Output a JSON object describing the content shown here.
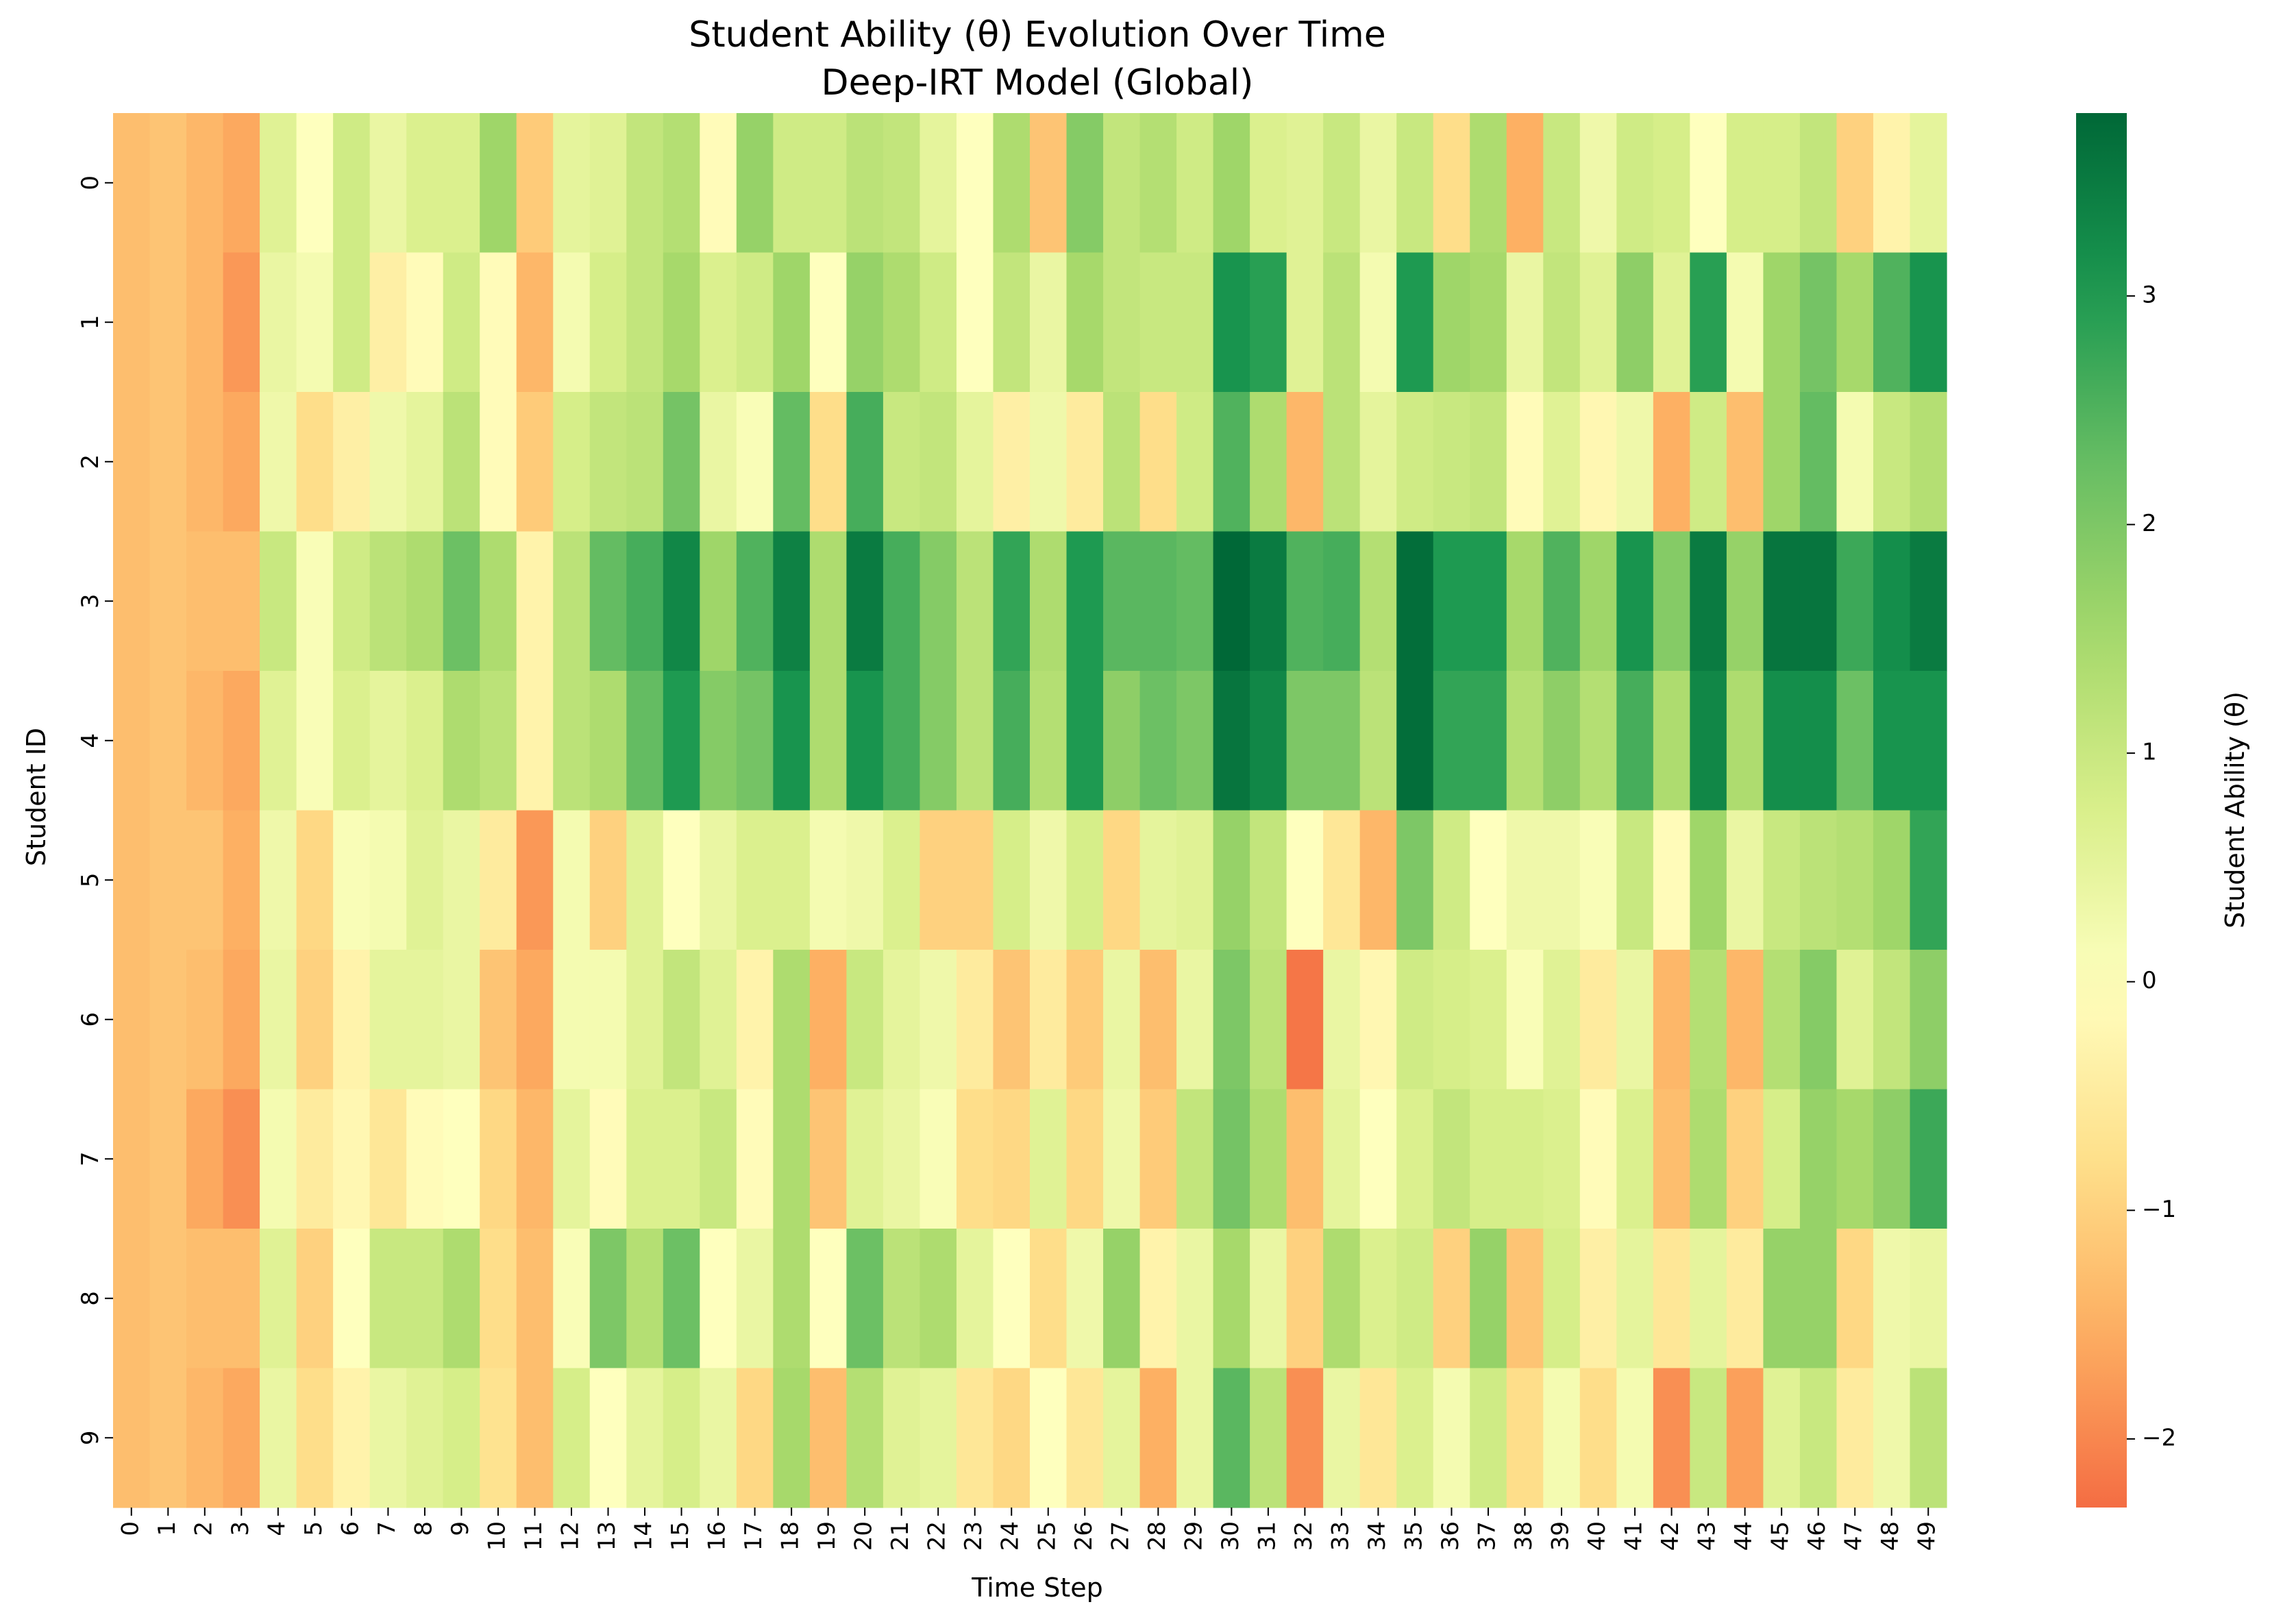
{
  "chart_data": {
    "type": "heatmap",
    "title": "Student Ability (θ) Evolution Over Time",
    "subtitle": "Deep-IRT Model (Global)",
    "xlabel": "Time Step",
    "ylabel": "Student ID",
    "colorbar_label": "Student Ability (θ)",
    "colormap": "RdYlGn",
    "vmin": -2.3,
    "vmax": 3.8,
    "colorbar_ticks": [
      -2,
      -1,
      0,
      1,
      2,
      3
    ],
    "x": [
      0,
      1,
      2,
      3,
      4,
      5,
      6,
      7,
      8,
      9,
      10,
      11,
      12,
      13,
      14,
      15,
      16,
      17,
      18,
      19,
      20,
      21,
      22,
      23,
      24,
      25,
      26,
      27,
      28,
      29,
      30,
      31,
      32,
      33,
      34,
      35,
      36,
      37,
      38,
      39,
      40,
      41,
      42,
      43,
      44,
      45,
      46,
      47,
      48,
      49
    ],
    "y": [
      0,
      1,
      2,
      3,
      4,
      5,
      6,
      7,
      8,
      9
    ],
    "values": [
      [
        -1.3,
        -1.2,
        -1.4,
        -1.6,
        0.6,
        0.0,
        0.9,
        0.4,
        0.7,
        0.7,
        1.6,
        -1.1,
        0.5,
        0.6,
        1.1,
        1.3,
        -0.1,
        1.7,
        0.9,
        0.9,
        1.2,
        1.1,
        0.5,
        0.0,
        1.4,
        -1.2,
        1.9,
        1.1,
        1.3,
        0.9,
        1.6,
        0.7,
        0.6,
        1.0,
        0.4,
        1.0,
        -0.8,
        1.4,
        -1.5,
        1.0,
        0.3,
        0.9,
        0.8,
        0.0,
        0.8,
        0.8,
        1.1,
        -1.0,
        -0.3,
        0.5
      ],
      [
        -1.3,
        -1.2,
        -1.4,
        -1.8,
        0.4,
        0.2,
        0.9,
        -0.4,
        -0.1,
        0.9,
        -0.1,
        -1.4,
        0.2,
        0.8,
        1.1,
        1.5,
        0.7,
        0.9,
        1.6,
        0.0,
        1.7,
        1.4,
        0.9,
        0.0,
        1.1,
        0.4,
        1.5,
        1.1,
        1.0,
        1.0,
        3.1,
        2.9,
        0.6,
        1.2,
        0.2,
        3.0,
        1.6,
        1.5,
        0.4,
        1.1,
        0.6,
        1.8,
        0.6,
        2.9,
        0.2,
        1.6,
        2.1,
        1.5,
        2.5,
        3.1
      ],
      [
        -1.3,
        -1.2,
        -1.4,
        -1.6,
        0.3,
        -0.8,
        -0.4,
        0.3,
        0.5,
        1.2,
        -0.1,
        -1.1,
        0.8,
        1.1,
        1.2,
        2.1,
        0.4,
        0.1,
        2.3,
        -0.8,
        2.6,
        1.0,
        1.1,
        0.5,
        -0.4,
        0.3,
        -0.5,
        1.2,
        -0.8,
        0.9,
        2.5,
        1.4,
        -1.4,
        1.2,
        0.5,
        0.9,
        1.0,
        1.1,
        -0.1,
        0.6,
        -0.2,
        0.3,
        -1.5,
        0.9,
        -1.3,
        1.6,
        2.3,
        0.2,
        1.0,
        1.3
      ],
      [
        -1.3,
        -1.2,
        -1.3,
        -1.3,
        1.0,
        0.1,
        0.9,
        1.2,
        1.4,
        2.2,
        1.4,
        -0.3,
        1.2,
        2.3,
        2.6,
        3.3,
        1.6,
        2.5,
        3.4,
        1.4,
        3.5,
        2.6,
        1.9,
        1.2,
        2.8,
        1.4,
        3.0,
        2.4,
        2.4,
        2.3,
        3.8,
        3.5,
        2.5,
        2.6,
        1.3,
        3.7,
        3.0,
        3.0,
        1.5,
        2.5,
        1.6,
        3.1,
        1.9,
        3.5,
        1.7,
        3.6,
        3.6,
        2.7,
        3.2,
        3.5
      ],
      [
        -1.3,
        -1.2,
        -1.4,
        -1.6,
        0.6,
        0.1,
        0.7,
        0.5,
        0.7,
        1.4,
        1.2,
        -0.3,
        1.2,
        1.4,
        2.3,
        3.0,
        1.9,
        2.1,
        3.1,
        1.4,
        3.1,
        2.6,
        1.9,
        1.2,
        2.6,
        1.3,
        3.0,
        1.8,
        2.2,
        2.0,
        3.6,
        3.3,
        2.0,
        2.0,
        1.2,
        3.7,
        2.8,
        2.8,
        1.3,
        1.8,
        1.3,
        2.6,
        1.4,
        3.3,
        1.4,
        3.2,
        3.2,
        2.2,
        3.1,
        3.1
      ],
      [
        -1.3,
        -1.2,
        -1.2,
        -1.5,
        0.3,
        -0.9,
        0.1,
        0.2,
        0.6,
        0.4,
        -0.5,
        -1.8,
        0.2,
        -1.0,
        0.6,
        0.0,
        0.4,
        0.7,
        0.7,
        0.2,
        0.3,
        0.7,
        -1.0,
        -1.0,
        0.8,
        0.3,
        0.8,
        -0.9,
        0.5,
        0.6,
        1.7,
        1.1,
        0.0,
        -0.6,
        -1.4,
        2.0,
        0.9,
        0.0,
        0.3,
        0.3,
        0.1,
        1.0,
        -0.1,
        1.6,
        0.4,
        1.0,
        1.2,
        1.3,
        1.6,
        2.8
      ],
      [
        -1.3,
        -1.2,
        -1.3,
        -1.6,
        0.4,
        -1.0,
        -0.3,
        0.5,
        0.5,
        0.4,
        -1.2,
        -1.6,
        0.2,
        0.2,
        0.6,
        1.1,
        0.6,
        -0.3,
        1.4,
        -1.5,
        1.0,
        0.5,
        0.3,
        -0.5,
        -1.2,
        -0.5,
        -1.1,
        0.4,
        -1.3,
        0.4,
        2.0,
        1.2,
        -2.2,
        0.4,
        -0.2,
        0.9,
        0.8,
        0.7,
        0.1,
        0.6,
        -0.5,
        0.4,
        -1.4,
        1.3,
        -1.4,
        1.3,
        1.9,
        0.6,
        1.1,
        1.8
      ],
      [
        -1.3,
        -1.2,
        -1.6,
        -1.9,
        0.2,
        -0.5,
        -0.2,
        -0.6,
        -0.1,
        0.0,
        -0.9,
        -1.4,
        0.5,
        -0.1,
        0.7,
        0.7,
        1.0,
        -0.1,
        1.4,
        -1.2,
        0.6,
        0.4,
        0.1,
        -0.8,
        -0.9,
        0.6,
        -0.9,
        0.3,
        -1.1,
        1.1,
        2.1,
        1.4,
        -1.3,
        0.5,
        0.0,
        0.7,
        1.1,
        0.8,
        0.8,
        0.7,
        -0.1,
        0.7,
        -1.3,
        1.4,
        -1.0,
        0.8,
        1.7,
        1.5,
        1.8,
        2.7
      ],
      [
        -1.3,
        -1.2,
        -1.3,
        -1.3,
        0.6,
        -1.0,
        0.0,
        1.0,
        1.0,
        1.4,
        -0.8,
        -1.3,
        0.1,
        2.0,
        1.3,
        2.2,
        0.0,
        0.4,
        1.4,
        0.0,
        2.2,
        1.2,
        1.4,
        0.5,
        0.0,
        -0.8,
        0.3,
        1.7,
        -0.3,
        0.4,
        1.5,
        0.4,
        -1.0,
        1.4,
        0.7,
        0.9,
        -1.0,
        1.7,
        -1.2,
        0.8,
        -0.4,
        0.5,
        -0.6,
        0.5,
        -0.5,
        1.7,
        1.7,
        -0.9,
        0.3,
        0.4
      ],
      [
        -1.3,
        -1.2,
        -1.4,
        -1.6,
        0.4,
        -0.8,
        -0.3,
        0.4,
        0.6,
        0.8,
        -0.7,
        -1.3,
        0.8,
        0.0,
        0.5,
        0.8,
        0.4,
        -0.9,
        1.5,
        -1.3,
        1.3,
        0.6,
        0.5,
        -0.6,
        -0.9,
        0.0,
        -0.6,
        0.5,
        -1.5,
        0.4,
        2.4,
        1.2,
        -1.9,
        0.4,
        -0.6,
        0.7,
        0.2,
        0.9,
        -0.8,
        0.2,
        -0.8,
        0.2,
        -1.9,
        1.0,
        -1.7,
        0.6,
        1.0,
        -0.5,
        0.3,
        1.2
      ]
    ]
  }
}
